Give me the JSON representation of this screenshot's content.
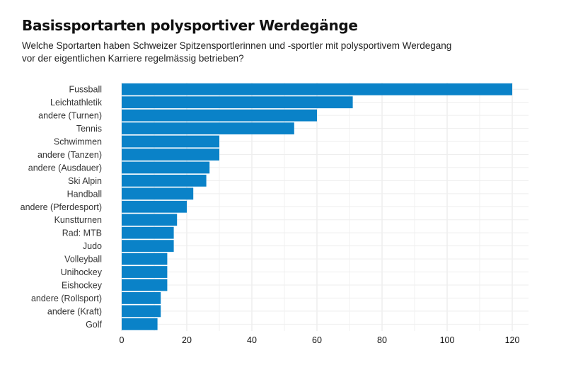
{
  "header": {
    "title": "Basissportarten polysportiver Werdegänge",
    "subtitle_line1": "Welche Sportarten haben Schweizer Spitzensportlerinnen und -sportler mit polysportivem Werdegang",
    "subtitle_line2": "vor der eigentlichen Karriere regelmässig betrieben?"
  },
  "chart_data": {
    "type": "bar",
    "orientation": "horizontal",
    "title": "Basissportarten polysportiver Werdegänge",
    "subtitle": "Welche Sportarten haben Schweizer Spitzensportlerinnen und -sportler mit polysportivem Werdegang vor der eigentlichen Karriere regelmässig betrieben?",
    "xlabel": "",
    "ylabel": "",
    "categories": [
      "Fussball",
      "Leichtathletik",
      "andere (Turnen)",
      "Tennis",
      "Schwimmen",
      "andere (Tanzen)",
      "andere (Ausdauer)",
      "Ski Alpin",
      "Handball",
      "andere (Pferdesport)",
      "Kunstturnen",
      "Rad: MTB",
      "Judo",
      "Volleyball",
      "Unihockey",
      "Eishockey",
      "andere (Rollsport)",
      "andere (Kraft)",
      "Golf"
    ],
    "values": [
      120,
      71,
      60,
      53,
      30,
      30,
      27,
      26,
      22,
      20,
      17,
      16,
      16,
      14,
      14,
      14,
      12,
      12,
      11
    ],
    "xlim": [
      0,
      125
    ],
    "xticks": [
      0,
      20,
      40,
      60,
      80,
      100,
      120
    ],
    "grid": true,
    "bar_color": "#0a82c8"
  }
}
